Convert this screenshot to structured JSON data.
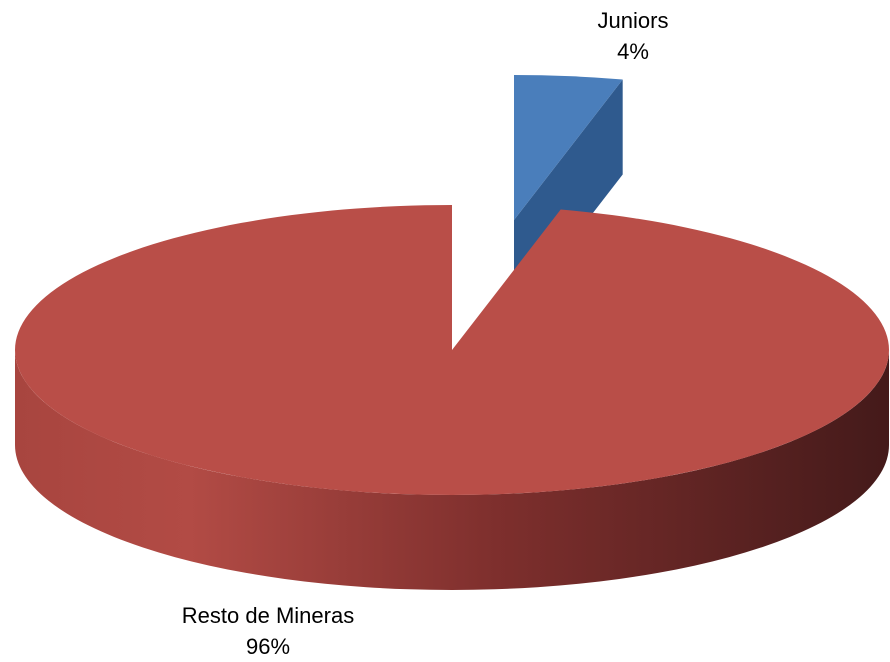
{
  "chart_data": {
    "type": "pie",
    "categories": [
      "Juniors",
      "Resto de Mineras"
    ],
    "values": [
      4,
      96
    ],
    "value_labels": [
      "4%",
      "96%"
    ],
    "colors": [
      "#4a7ebb",
      "#b94e48"
    ]
  }
}
